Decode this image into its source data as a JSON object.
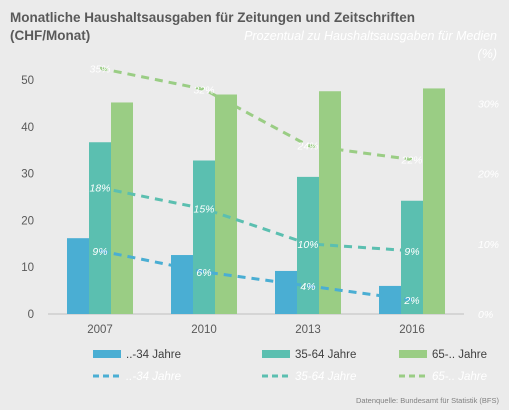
{
  "chart_data": {
    "type": "bar",
    "title": "Monatliche Haushaltsausgaben für Zeitungen und Zeitschriften",
    "subtitle": "(CHF/Monat)",
    "secondary_title": "Prozentual zu Haushaltsausgaben für Medien",
    "secondary_unit": "(%)",
    "categories": [
      "2007",
      "2010",
      "2013",
      "2016"
    ],
    "ylim": [
      0,
      50
    ],
    "yticks": [
      "0",
      "10",
      "20",
      "30",
      "40",
      "50"
    ],
    "y2lim": [
      0,
      0.3333
    ],
    "y2ticks": [
      [
        "0%",
        0
      ],
      [
        "10%",
        0.1
      ],
      [
        "20%",
        0.2
      ],
      [
        "30%",
        0.3
      ]
    ],
    "grid": false,
    "legend_position": "bottom",
    "series": [
      {
        "name": "..-34 Jahre",
        "values": [
          16.2,
          12.6,
          9.2,
          6.0
        ],
        "color": "#4aaed3"
      },
      {
        "name": "35-64 Jahre",
        "values": [
          36.7,
          32.8,
          29.3,
          24.2
        ],
        "color": "#5bbfb0"
      },
      {
        "name": "65-.. Jahre",
        "values": [
          45.2,
          46.9,
          47.6,
          48.2
        ],
        "color": "#9acd84"
      }
    ],
    "line_series": [
      {
        "name": "..-34 Jahre",
        "values": [
          0.09,
          0.06,
          0.04,
          0.02
        ],
        "labels": [
          "9%",
          "6%",
          "4%",
          "2%"
        ],
        "color": "#4aaed3"
      },
      {
        "name": "35-64 Jahre",
        "values": [
          0.18,
          0.15,
          0.1,
          0.09
        ],
        "labels": [
          "18%",
          "15%",
          "10%",
          "9%"
        ],
        "color": "#5bbfb0"
      },
      {
        "name": "65-.. Jahre",
        "values": [
          0.35,
          0.32,
          0.24,
          0.22
        ],
        "labels": [
          "35%",
          "32%",
          "24%",
          "22%"
        ],
        "color": "#9acd84"
      }
    ],
    "source": "Datenquelle:  Bundesamt für Statistik  (BFS)"
  }
}
